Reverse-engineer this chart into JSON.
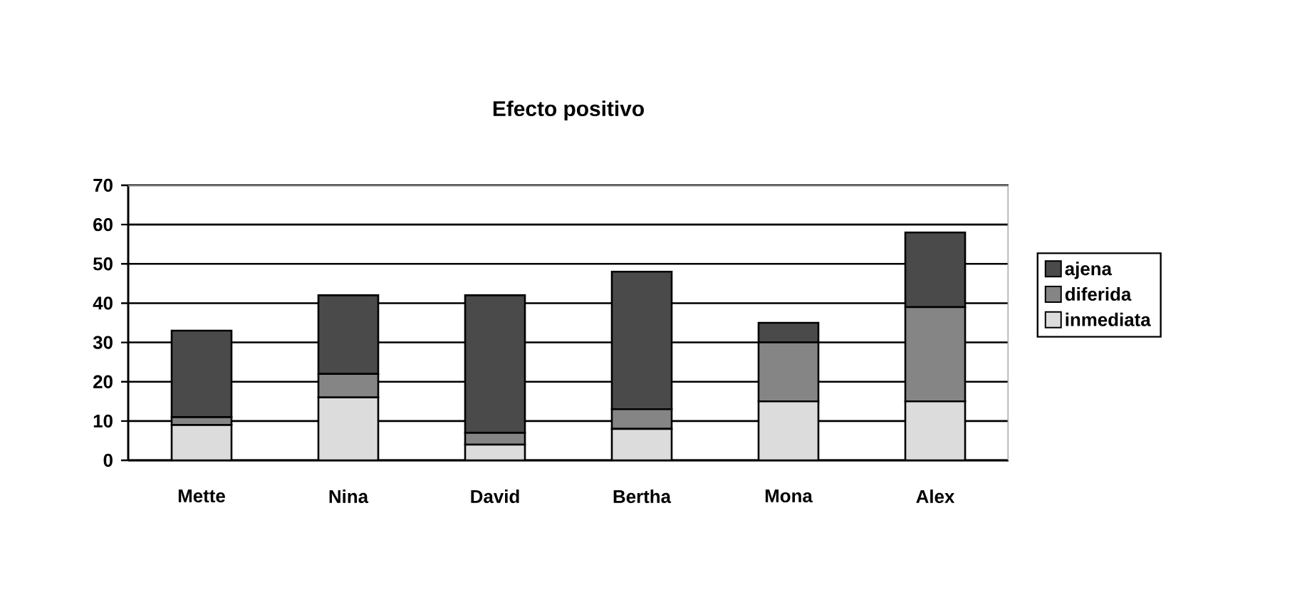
{
  "chart_data": {
    "type": "bar",
    "title": "Efecto positivo",
    "stacked": true,
    "categories": [
      "Mette",
      "Nina",
      "David",
      "Bertha",
      "Mona",
      "Alex"
    ],
    "series": [
      {
        "name": "inmediata",
        "color": "#dcdcdc",
        "values": [
          9,
          16,
          4,
          8,
          15,
          15
        ]
      },
      {
        "name": "diferida",
        "color": "#858585",
        "values": [
          2,
          6,
          3,
          5,
          15,
          24
        ]
      },
      {
        "name": "ajena",
        "color": "#4a4a4a",
        "values": [
          22,
          20,
          35,
          35,
          5,
          19
        ]
      }
    ],
    "ylim": [
      0,
      70
    ],
    "yticks": [
      0,
      10,
      20,
      30,
      40,
      50,
      60,
      70
    ],
    "grid": "y",
    "legend": "right"
  }
}
